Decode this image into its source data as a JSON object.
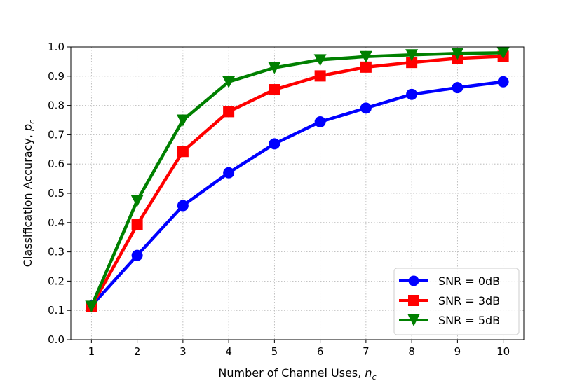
{
  "chart_data": {
    "type": "line",
    "title": "",
    "xlabel": "Number of Channel Uses, ",
    "xlabel_sym": "n",
    "xlabel_sub": "c",
    "ylabel": "Classification Accuracy, ",
    "ylabel_sym": "p",
    "ylabel_sub": "c",
    "x": [
      1,
      2,
      3,
      4,
      5,
      6,
      7,
      8,
      9,
      10
    ],
    "xlim": [
      0.55,
      10.45
    ],
    "ylim": [
      0.0,
      1.0
    ],
    "xticks": [
      "1",
      "2",
      "3",
      "4",
      "5",
      "6",
      "7",
      "8",
      "9",
      "10"
    ],
    "yticks": [
      "0.0",
      "0.1",
      "0.2",
      "0.3",
      "0.4",
      "0.5",
      "0.6",
      "0.7",
      "0.8",
      "0.9",
      "1.0"
    ],
    "grid": true,
    "legend_position": "lower-right",
    "series": [
      {
        "name": "SNR = 0dB",
        "color": "#0000ff",
        "marker": "circle",
        "values": [
          0.115,
          0.288,
          0.458,
          0.57,
          0.669,
          0.744,
          0.791,
          0.838,
          0.861,
          0.881
        ]
      },
      {
        "name": "SNR = 3dB",
        "color": "#ff0000",
        "marker": "square",
        "values": [
          0.113,
          0.393,
          0.643,
          0.779,
          0.854,
          0.901,
          0.931,
          0.947,
          0.961,
          0.968
        ]
      },
      {
        "name": "SNR = 5dB",
        "color": "#008000",
        "marker": "triangle-down",
        "values": [
          0.114,
          0.475,
          0.75,
          0.881,
          0.929,
          0.956,
          0.967,
          0.973,
          0.978,
          0.98
        ]
      }
    ]
  }
}
